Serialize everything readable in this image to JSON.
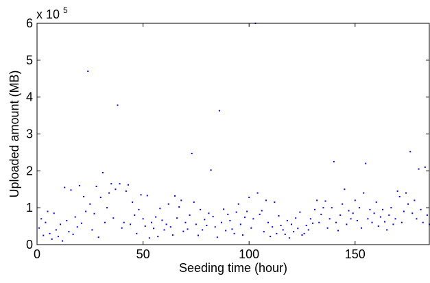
{
  "chart_data": {
    "type": "scatter",
    "title": "",
    "xlabel": "Seeding time (hour)",
    "ylabel": "Uploaded amount (MB)",
    "xlim": [
      0,
      185
    ],
    "ylim": [
      0,
      600000
    ],
    "xticks": [
      "0",
      "50",
      "100",
      "150"
    ],
    "yticks": [
      "0",
      "1",
      "2",
      "3",
      "4",
      "5",
      "6"
    ],
    "y_multiplier": {
      "base": "x 10",
      "exponent": "5"
    },
    "grid": false,
    "legend": "none",
    "marker_color": "#0000ff",
    "series": [
      {
        "name": "",
        "points": [
          [
            1,
            45000
          ],
          [
            2,
            70000
          ],
          [
            3,
            25000
          ],
          [
            4,
            60000
          ],
          [
            5,
            90000
          ],
          [
            6,
            30000
          ],
          [
            7,
            15000
          ],
          [
            8,
            85000
          ],
          [
            9,
            40000
          ],
          [
            10,
            22000
          ],
          [
            11,
            55000
          ],
          [
            12,
            10000
          ],
          [
            13,
            155000
          ],
          [
            14,
            65000
          ],
          [
            15,
            35000
          ],
          [
            16,
            148000
          ],
          [
            17,
            28000
          ],
          [
            18,
            75000
          ],
          [
            19,
            48000
          ],
          [
            20,
            160000
          ],
          [
            21,
            58000
          ],
          [
            22,
            130000
          ],
          [
            23,
            90000
          ],
          [
            24,
            470000
          ],
          [
            25,
            110000
          ],
          [
            26,
            40000
          ],
          [
            27,
            84000
          ],
          [
            28,
            158000
          ],
          [
            29,
            20000
          ],
          [
            30,
            128000
          ],
          [
            31,
            195000
          ],
          [
            32,
            60000
          ],
          [
            33,
            100000
          ],
          [
            34,
            140000
          ],
          [
            35,
            165000
          ],
          [
            36,
            72000
          ],
          [
            37,
            150000
          ],
          [
            38,
            378000
          ],
          [
            39,
            165000
          ],
          [
            40,
            45000
          ],
          [
            41,
            60000
          ],
          [
            42,
            145000
          ],
          [
            43,
            162000
          ],
          [
            44,
            55000
          ],
          [
            45,
            115000
          ],
          [
            46,
            80000
          ],
          [
            47,
            30000
          ],
          [
            48,
            95000
          ],
          [
            49,
            135000
          ],
          [
            50,
            70000
          ],
          [
            51,
            50000
          ],
          [
            52,
            133000
          ],
          [
            53,
            18000
          ],
          [
            54,
            60000
          ],
          [
            55,
            44000
          ],
          [
            56,
            75000
          ],
          [
            57,
            22000
          ],
          [
            58,
            98000
          ],
          [
            59,
            66000
          ],
          [
            60,
            40000
          ],
          [
            61,
            55000
          ],
          [
            62,
            110000
          ],
          [
            63,
            48000
          ],
          [
            64,
            26000
          ],
          [
            65,
            132000
          ],
          [
            66,
            72000
          ],
          [
            67,
            102000
          ],
          [
            68,
            120000
          ],
          [
            69,
            36000
          ],
          [
            70,
            60000
          ],
          [
            71,
            42000
          ],
          [
            72,
            80000
          ],
          [
            73,
            247000
          ],
          [
            74,
            115000
          ],
          [
            75,
            55000
          ],
          [
            76,
            25000
          ],
          [
            77,
            95000
          ],
          [
            78,
            40000
          ],
          [
            79,
            68000
          ],
          [
            80,
            52000
          ],
          [
            81,
            85000
          ],
          [
            82,
            202000
          ],
          [
            83,
            76000
          ],
          [
            84,
            48000
          ],
          [
            85,
            20000
          ],
          [
            86,
            363000
          ],
          [
            87,
            60000
          ],
          [
            88,
            96000
          ],
          [
            89,
            38000
          ],
          [
            90,
            82000
          ],
          [
            91,
            65000
          ],
          [
            92,
            42000
          ],
          [
            93,
            30000
          ],
          [
            94,
            88000
          ],
          [
            95,
            110000
          ],
          [
            96,
            55000
          ],
          [
            97,
            26000
          ],
          [
            98,
            74000
          ],
          [
            99,
            90000
          ],
          [
            100,
            128000
          ],
          [
            101,
            45000
          ],
          [
            102,
            70000
          ],
          [
            103,
            600000
          ],
          [
            104,
            140000
          ],
          [
            105,
            82000
          ],
          [
            106,
            92000
          ],
          [
            107,
            35000
          ],
          [
            108,
            120000
          ],
          [
            109,
            60000
          ],
          [
            110,
            22000
          ],
          [
            111,
            48000
          ],
          [
            112,
            115000
          ],
          [
            113,
            30000
          ],
          [
            114,
            78000
          ],
          [
            115,
            52000
          ],
          [
            116,
            40000
          ],
          [
            117,
            28000
          ],
          [
            118,
            65000
          ],
          [
            119,
            18000
          ],
          [
            120,
            55000
          ],
          [
            121,
            35000
          ],
          [
            122,
            72000
          ],
          [
            123,
            44000
          ],
          [
            124,
            88000
          ],
          [
            125,
            26000
          ],
          [
            126,
            30000
          ],
          [
            127,
            52000
          ],
          [
            128,
            40000
          ],
          [
            129,
            70000
          ],
          [
            130,
            58000
          ],
          [
            131,
            95000
          ],
          [
            132,
            120000
          ],
          [
            133,
            60000
          ],
          [
            134,
            82000
          ],
          [
            135,
            100000
          ],
          [
            136,
            118000
          ],
          [
            137,
            45000
          ],
          [
            138,
            70000
          ],
          [
            139,
            100000
          ],
          [
            140,
            225000
          ],
          [
            141,
            60000
          ],
          [
            142,
            38000
          ],
          [
            143,
            80000
          ],
          [
            144,
            110000
          ],
          [
            145,
            150000
          ],
          [
            146,
            55000
          ],
          [
            147,
            92000
          ],
          [
            148,
            70000
          ],
          [
            149,
            85000
          ],
          [
            150,
            120000
          ],
          [
            151,
            65000
          ],
          [
            152,
            100000
          ],
          [
            153,
            45000
          ],
          [
            154,
            140000
          ],
          [
            155,
            220000
          ],
          [
            156,
            70000
          ],
          [
            157,
            95000
          ],
          [
            158,
            60000
          ],
          [
            159,
            85000
          ],
          [
            160,
            115000
          ],
          [
            161,
            50000
          ],
          [
            162,
            75000
          ],
          [
            163,
            95000
          ],
          [
            164,
            62000
          ],
          [
            165,
            40000
          ],
          [
            166,
            80000
          ],
          [
            167,
            100000
          ],
          [
            168,
            55000
          ],
          [
            169,
            70000
          ],
          [
            170,
            145000
          ],
          [
            171,
            130000
          ],
          [
            172,
            60000
          ],
          [
            173,
            90000
          ],
          [
            174,
            140000
          ],
          [
            175,
            110000
          ],
          [
            176,
            252000
          ],
          [
            177,
            85000
          ],
          [
            178,
            120000
          ],
          [
            179,
            70000
          ],
          [
            180,
            205000
          ],
          [
            181,
            95000
          ],
          [
            182,
            60000
          ],
          [
            183,
            210000
          ],
          [
            184,
            80000
          ],
          [
            185,
            55000
          ]
        ]
      }
    ]
  }
}
